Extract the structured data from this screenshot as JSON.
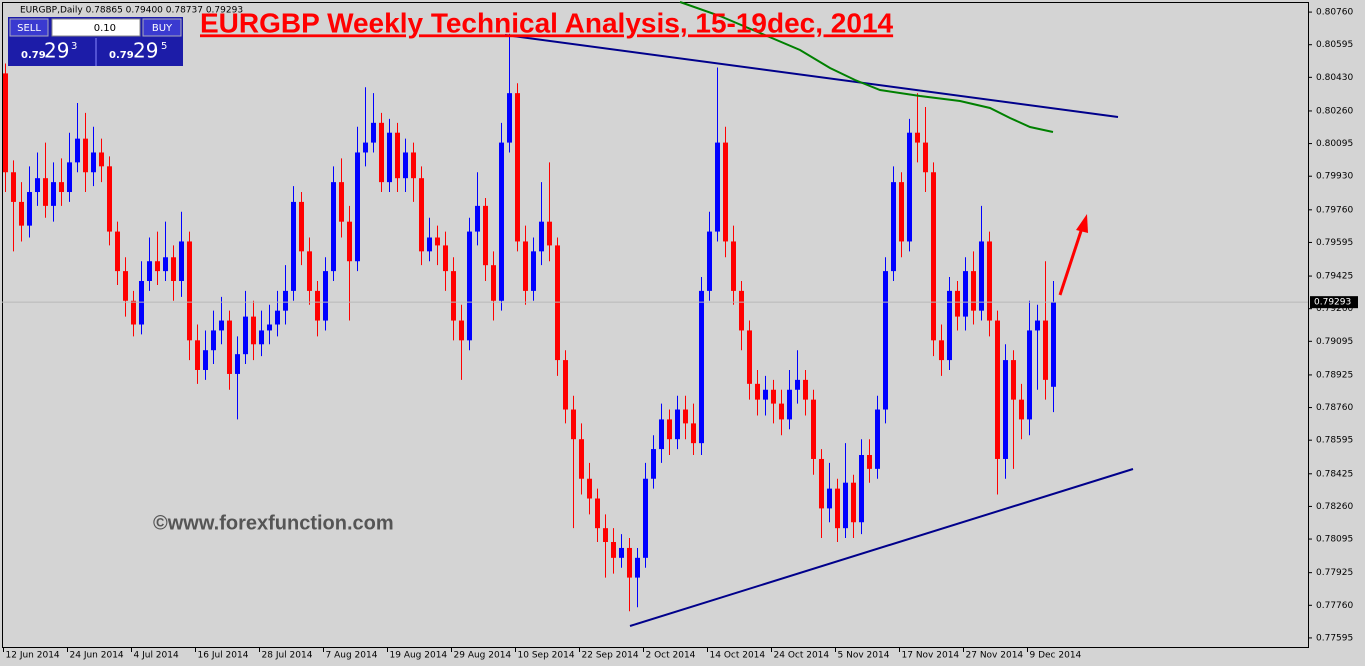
{
  "chart_data": {
    "type": "candlestick",
    "title": "EURGBP Weekly Technical Analysis, 15-19dec, 2014",
    "watermark": "©www.forexfunction.com",
    "header": "EURGBP,Daily  0.78865 0.79400 0.78737 0.79293",
    "trade_panel": {
      "sell": "SELL",
      "lot": "0.10",
      "buy": "BUY",
      "sell_big": "0.79",
      "sell_pips": "29",
      "sell_frac": "3",
      "buy_big": "0.79",
      "buy_pips": "29",
      "buy_frac": "5"
    },
    "up_color": "#0000ff",
    "down_color": "#ff0000",
    "grid": false,
    "categories": [
      "12 Jun 2014",
      null,
      null,
      null,
      null,
      null,
      null,
      null,
      "24 Jun 2014",
      null,
      null,
      null,
      null,
      null,
      null,
      null,
      "4 Jul 2014",
      null,
      null,
      null,
      null,
      null,
      null,
      null,
      "16 Jul 2014",
      null,
      null,
      null,
      null,
      null,
      null,
      null,
      "28 Jul 2014",
      null,
      null,
      null,
      null,
      null,
      null,
      null,
      "7 Aug 2014",
      null,
      null,
      null,
      null,
      null,
      null,
      null,
      "19 Aug 2014",
      null,
      null,
      null,
      null,
      null,
      null,
      null,
      "29 Aug 2014",
      null,
      null,
      null,
      null,
      null,
      null,
      null,
      "10 Sep 2014",
      null,
      null,
      null,
      null,
      null,
      null,
      null,
      "22 Sep 2014",
      null,
      null,
      null,
      null,
      null,
      null,
      null,
      "2 Oct 2014",
      null,
      null,
      null,
      null,
      null,
      null,
      null,
      "14 Oct 2014",
      null,
      null,
      null,
      null,
      null,
      null,
      null,
      "24 Oct 2014",
      null,
      null,
      null,
      null,
      null,
      null,
      null,
      "5 Nov 2014",
      null,
      null,
      null,
      null,
      null,
      null,
      null,
      "17 Nov 2014",
      null,
      null,
      null,
      null,
      null,
      null,
      null,
      "27 Nov 2014",
      null,
      null,
      null,
      null,
      null,
      null,
      null,
      "9 Dec 2014",
      null,
      null,
      null
    ],
    "open": [
      0.8045,
      0.7995,
      0.798,
      0.7968,
      0.7985,
      0.7992,
      0.7978,
      0.799,
      0.7985,
      0.8,
      0.8012,
      0.7995,
      0.8005,
      0.7998,
      0.7965,
      0.7945,
      0.793,
      0.7918,
      0.794,
      0.795,
      0.7945,
      0.7952,
      0.794,
      0.796,
      0.791,
      0.7895,
      0.7905,
      0.7915,
      0.792,
      0.7893,
      0.7903,
      0.7922,
      0.7908,
      0.7915,
      0.7918,
      0.7925,
      0.7935,
      0.798,
      0.7955,
      0.7935,
      0.792,
      0.7945,
      0.799,
      0.797,
      0.795,
      0.8005,
      0.801,
      0.802,
      0.799,
      0.8015,
      0.7992,
      0.8005,
      0.7992,
      0.7955,
      0.7962,
      0.7958,
      0.7945,
      0.792,
      0.791,
      0.7965,
      0.7978,
      0.7948,
      0.793,
      0.801,
      0.8035,
      0.796,
      0.7935,
      0.7955,
      0.797,
      0.7958,
      0.79,
      0.7875,
      0.786,
      0.784,
      0.783,
      0.7815,
      0.7808,
      0.78,
      0.7805,
      0.779,
      0.78,
      0.784,
      0.7855,
      0.787,
      0.786,
      0.7875,
      0.7868,
      0.7858,
      0.7935,
      0.7965,
      0.801,
      0.796,
      0.7935,
      0.7915,
      0.7888,
      0.788,
      0.7885,
      0.7878,
      0.787,
      0.7885,
      0.789,
      0.788,
      0.785,
      0.7825,
      0.7835,
      0.7815,
      0.7838,
      0.7818,
      0.7852,
      0.7845,
      0.7875,
      0.7945,
      0.799,
      0.796,
      0.8015,
      0.801,
      0.7995,
      0.791,
      0.79,
      0.7935,
      0.7922,
      0.7945,
      0.7925,
      0.796,
      0.792,
      0.785,
      0.79,
      0.788,
      0.787,
      0.7915,
      0.792,
      0.78865
    ],
    "high": [
      0.805,
      0.8001,
      0.799,
      0.7998,
      0.8005,
      0.801,
      0.8,
      0.8002,
      0.8015,
      0.803,
      0.8025,
      0.8018,
      0.8012,
      0.8003,
      0.797,
      0.7952,
      0.7935,
      0.795,
      0.7962,
      0.7965,
      0.797,
      0.7958,
      0.7975,
      0.7965,
      0.7918,
      0.7915,
      0.7925,
      0.7932,
      0.7925,
      0.7912,
      0.7935,
      0.793,
      0.7925,
      0.7928,
      0.7935,
      0.7948,
      0.7988,
      0.7985,
      0.7962,
      0.794,
      0.7952,
      0.7998,
      0.8002,
      0.7978,
      0.8018,
      0.8038,
      0.8035,
      0.8025,
      0.8022,
      0.802,
      0.8012,
      0.801,
      0.7998,
      0.7972,
      0.7968,
      0.7965,
      0.7952,
      0.7928,
      0.7972,
      0.7995,
      0.7982,
      0.7955,
      0.802,
      0.8065,
      0.804,
      0.7968,
      0.7962,
      0.799,
      0.8,
      0.7962,
      0.7905,
      0.7882,
      0.7868,
      0.7848,
      0.7835,
      0.7822,
      0.7815,
      0.7812,
      0.781,
      0.7805,
      0.7848,
      0.7862,
      0.7878,
      0.7875,
      0.7882,
      0.7882,
      0.7878,
      0.7942,
      0.7975,
      0.8048,
      0.8018,
      0.7968,
      0.794,
      0.792,
      0.7895,
      0.7892,
      0.789,
      0.7885,
      0.7895,
      0.7905,
      0.7895,
      0.7885,
      0.7855,
      0.7848,
      0.784,
      0.7858,
      0.7842,
      0.786,
      0.786,
      0.7882,
      0.7952,
      0.7998,
      0.7995,
      0.8022,
      0.8035,
      0.8028,
      0.8,
      0.7918,
      0.7942,
      0.794,
      0.7952,
      0.7955,
      0.7978,
      0.7965,
      0.7925,
      0.7908,
      0.7905,
      0.7888,
      0.793,
      0.7928,
      0.795,
      0.794
    ],
    "low": [
      0.7985,
      0.7955,
      0.796,
      0.7962,
      0.7978,
      0.7972,
      0.797,
      0.7978,
      0.798,
      0.7995,
      0.7985,
      0.7988,
      0.799,
      0.7958,
      0.7938,
      0.7922,
      0.7912,
      0.7913,
      0.7935,
      0.7938,
      0.794,
      0.793,
      0.7932,
      0.79,
      0.7888,
      0.789,
      0.7898,
      0.7908,
      0.7885,
      0.787,
      0.7898,
      0.79,
      0.7902,
      0.7908,
      0.7912,
      0.7918,
      0.793,
      0.7948,
      0.7928,
      0.7912,
      0.7915,
      0.794,
      0.7962,
      0.792,
      0.7945,
      0.7998,
      0.8005,
      0.7985,
      0.7985,
      0.7985,
      0.7985,
      0.798,
      0.7948,
      0.795,
      0.7948,
      0.7935,
      0.791,
      0.789,
      0.7905,
      0.7958,
      0.794,
      0.792,
      0.7925,
      0.8005,
      0.7955,
      0.7928,
      0.793,
      0.7948,
      0.795,
      0.7892,
      0.7868,
      0.7815,
      0.7832,
      0.7822,
      0.7808,
      0.779,
      0.7792,
      0.7795,
      0.7773,
      0.7775,
      0.7795,
      0.7835,
      0.7848,
      0.7852,
      0.7855,
      0.786,
      0.7852,
      0.7852,
      0.793,
      0.796,
      0.7952,
      0.7928,
      0.7905,
      0.788,
      0.7872,
      0.7872,
      0.7868,
      0.7862,
      0.7865,
      0.7878,
      0.7872,
      0.7842,
      0.781,
      0.7818,
      0.7808,
      0.781,
      0.781,
      0.7812,
      0.7838,
      0.784,
      0.7868,
      0.794,
      0.7952,
      0.7955,
      0.8,
      0.7985,
      0.7902,
      0.7892,
      0.7895,
      0.7915,
      0.7915,
      0.7918,
      0.792,
      0.7912,
      0.7832,
      0.784,
      0.7845,
      0.786,
      0.7862,
      0.7885,
      0.788,
      0.78737
    ],
    "close": [
      0.7995,
      0.798,
      0.7968,
      0.7985,
      0.7992,
      0.7978,
      0.799,
      0.7985,
      0.8,
      0.8012,
      0.7995,
      0.8005,
      0.7998,
      0.7965,
      0.7945,
      0.793,
      0.7918,
      0.794,
      0.795,
      0.7945,
      0.7952,
      0.794,
      0.796,
      0.791,
      0.7895,
      0.7905,
      0.7915,
      0.792,
      0.7893,
      0.7903,
      0.7922,
      0.7908,
      0.7915,
      0.7918,
      0.7925,
      0.7935,
      0.798,
      0.7955,
      0.7935,
      0.792,
      0.7945,
      0.799,
      0.797,
      0.795,
      0.8005,
      0.801,
      0.802,
      0.799,
      0.8015,
      0.7992,
      0.8005,
      0.7992,
      0.7955,
      0.7962,
      0.7958,
      0.7945,
      0.792,
      0.791,
      0.7965,
      0.7978,
      0.7948,
      0.793,
      0.801,
      0.8035,
      0.796,
      0.7935,
      0.7955,
      0.797,
      0.7958,
      0.79,
      0.7875,
      0.786,
      0.784,
      0.783,
      0.7815,
      0.7808,
      0.78,
      0.7805,
      0.779,
      0.78,
      0.784,
      0.7855,
      0.787,
      0.786,
      0.7875,
      0.7868,
      0.7858,
      0.7935,
      0.7965,
      0.801,
      0.796,
      0.7935,
      0.7915,
      0.7888,
      0.788,
      0.7885,
      0.7878,
      0.787,
      0.7885,
      0.789,
      0.788,
      0.785,
      0.7825,
      0.7835,
      0.7815,
      0.7838,
      0.7818,
      0.7852,
      0.7845,
      0.7875,
      0.7945,
      0.799,
      0.796,
      0.8015,
      0.801,
      0.7995,
      0.791,
      0.79,
      0.7935,
      0.7922,
      0.7945,
      0.7925,
      0.796,
      0.792,
      0.785,
      0.79,
      0.788,
      0.787,
      0.7915,
      0.792,
      0.789,
      0.79293
    ],
    "current_price": {
      "value": 0.79293,
      "label": "0.79293"
    },
    "ylim": [
      0.77544,
      0.80811
    ],
    "yticks": [
      {
        "value": 0.8076,
        "label": "0.80760"
      },
      {
        "value": 0.80595,
        "label": "0.80595"
      },
      {
        "value": 0.8043,
        "label": "0.80430"
      },
      {
        "value": 0.8026,
        "label": "0.80260"
      },
      {
        "value": 0.80095,
        "label": "0.80095"
      },
      {
        "value": 0.7993,
        "label": "0.79930"
      },
      {
        "value": 0.7976,
        "label": "0.79760"
      },
      {
        "value": 0.79595,
        "label": "0.79595"
      },
      {
        "value": 0.79425,
        "label": "0.79425"
      },
      {
        "value": 0.7926,
        "label": "0.79260"
      },
      {
        "value": 0.79095,
        "label": "0.79095"
      },
      {
        "value": 0.78925,
        "label": "0.78925"
      },
      {
        "value": 0.7876,
        "label": "0.78760"
      },
      {
        "value": 0.78595,
        "label": "0.78595"
      },
      {
        "value": 0.78425,
        "label": "0.78425"
      },
      {
        "value": 0.7826,
        "label": "0.78260"
      },
      {
        "value": 0.78095,
        "label": "0.78095"
      },
      {
        "value": 0.77925,
        "label": "0.77925"
      },
      {
        "value": 0.7776,
        "label": "0.77760"
      },
      {
        "value": 0.77595,
        "label": "0.77595"
      }
    ]
  }
}
